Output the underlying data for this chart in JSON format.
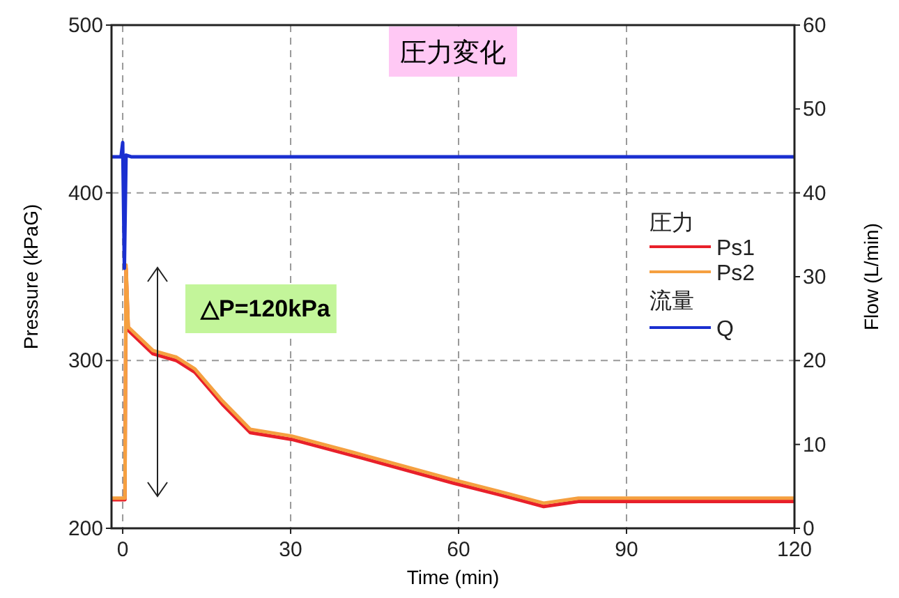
{
  "chart_data": {
    "type": "line",
    "title": "圧力変化",
    "xlabel": "Time (min)",
    "ylabel": "Pressure (kPaG)",
    "y2label": "Flow (L/min)",
    "legend_title": "圧力",
    "xlim": [
      -2,
      120
    ],
    "xticks": [
      0,
      30,
      60,
      90,
      120
    ],
    "ylim": [
      200,
      500
    ],
    "yticks": [
      200,
      300,
      400,
      500
    ],
    "y2lim": [
      0,
      60
    ],
    "y2ticks": [
      0,
      10,
      20,
      30,
      40,
      50,
      60
    ],
    "grid": true,
    "legend": "right",
    "line_style": "solid",
    "marker": "none",
    "series": [
      {
        "name": "Ps1",
        "color": "#e8202a",
        "x": [
          -2,
          0.4,
          0.6,
          1,
          5.4,
          9.6,
          12.9,
          17.8,
          22.8,
          30.2,
          42.6,
          59,
          67.3,
          75.2,
          81.4,
          120
        ],
        "values": [
          217,
          217,
          355,
          318,
          304,
          300,
          293,
          274,
          257,
          253,
          242,
          227,
          220,
          213,
          216,
          216
        ]
      },
      {
        "name": "Ps2",
        "color": "#f5a040",
        "x": [
          -2,
          0.4,
          0.6,
          1,
          5.4,
          9.6,
          12.9,
          17.8,
          22.8,
          30.2,
          42.6,
          59,
          67.3,
          75.2,
          81.4,
          120
        ],
        "values": [
          218,
          218,
          357,
          320,
          306,
          302,
          295,
          276,
          259,
          255,
          244,
          229,
          222,
          215,
          218,
          218
        ]
      },
      {
        "name": "Q",
        "color": "#1a2fd0",
        "axis": "y2",
        "x": [
          -2,
          -0.3,
          0,
          0.3,
          0.6,
          1.5,
          120
        ],
        "values": [
          44.3,
          44.3,
          46,
          31,
          44.5,
          44.3,
          44.3
        ]
      }
    ],
    "annotations": [
      "△P=120kPa",
      "流量"
    ]
  }
}
